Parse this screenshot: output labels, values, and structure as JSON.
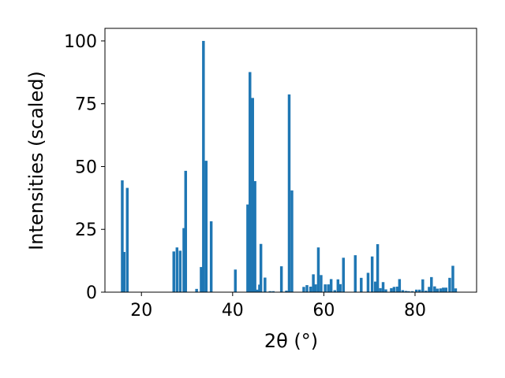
{
  "chart_data": {
    "type": "bar",
    "xlabel": "2θ (°)",
    "ylabel": "Intensities (scaled)",
    "xlim": [
      12,
      93.5
    ],
    "ylim": [
      0,
      105
    ],
    "x_ticks": [
      20,
      40,
      60,
      80
    ],
    "y_ticks": [
      0,
      25,
      50,
      75,
      100
    ],
    "grid": false,
    "bar_color": "#1f77b4",
    "bar_width": 0.6,
    "bars": [
      {
        "x": 15.8,
        "y": 44.5
      },
      {
        "x": 16.2,
        "y": 16
      },
      {
        "x": 16.9,
        "y": 41.5
      },
      {
        "x": 27.1,
        "y": 16.2
      },
      {
        "x": 27.8,
        "y": 17.8
      },
      {
        "x": 28.5,
        "y": 16.5
      },
      {
        "x": 29.3,
        "y": 25.5
      },
      {
        "x": 29.7,
        "y": 48.3
      },
      {
        "x": 32.1,
        "y": 1.3
      },
      {
        "x": 33.1,
        "y": 10
      },
      {
        "x": 33.6,
        "y": 100
      },
      {
        "x": 34.2,
        "y": 52.3
      },
      {
        "x": 35.3,
        "y": 28.2
      },
      {
        "x": 40.6,
        "y": 9
      },
      {
        "x": 43.3,
        "y": 34.9
      },
      {
        "x": 43.8,
        "y": 87.6
      },
      {
        "x": 44.4,
        "y": 77.3
      },
      {
        "x": 44.9,
        "y": 44.2
      },
      {
        "x": 45.4,
        "y": 1
      },
      {
        "x": 45.9,
        "y": 3
      },
      {
        "x": 46.2,
        "y": 19.2
      },
      {
        "x": 47.1,
        "y": 5.8
      },
      {
        "x": 48.2,
        "y": 0.4
      },
      {
        "x": 48.9,
        "y": 0.4
      },
      {
        "x": 50.7,
        "y": 10.3
      },
      {
        "x": 51.8,
        "y": 0.6
      },
      {
        "x": 52.4,
        "y": 78.7
      },
      {
        "x": 53.0,
        "y": 40.5
      },
      {
        "x": 55.6,
        "y": 2.1
      },
      {
        "x": 56.3,
        "y": 2.8
      },
      {
        "x": 57.1,
        "y": 2.2
      },
      {
        "x": 57.7,
        "y": 7.1
      },
      {
        "x": 58.2,
        "y": 3.1
      },
      {
        "x": 58.8,
        "y": 17.8
      },
      {
        "x": 59.4,
        "y": 6.8
      },
      {
        "x": 60.3,
        "y": 3.1
      },
      {
        "x": 61.0,
        "y": 3.1
      },
      {
        "x": 61.6,
        "y": 5.2
      },
      {
        "x": 62.4,
        "y": 0.8
      },
      {
        "x": 63.1,
        "y": 5.1
      },
      {
        "x": 63.6,
        "y": 3.2
      },
      {
        "x": 64.3,
        "y": 13.7
      },
      {
        "x": 66.9,
        "y": 14.7
      },
      {
        "x": 68.2,
        "y": 5.7
      },
      {
        "x": 69.7,
        "y": 7.7
      },
      {
        "x": 70.6,
        "y": 14.2
      },
      {
        "x": 71.3,
        "y": 4.2
      },
      {
        "x": 71.8,
        "y": 19.1
      },
      {
        "x": 72.4,
        "y": 1.6
      },
      {
        "x": 73.0,
        "y": 4
      },
      {
        "x": 73.6,
        "y": 1.1
      },
      {
        "x": 74.8,
        "y": 1.6
      },
      {
        "x": 75.4,
        "y": 2.1
      },
      {
        "x": 76.1,
        "y": 2.2
      },
      {
        "x": 76.6,
        "y": 5.2
      },
      {
        "x": 77.3,
        "y": 0.8
      },
      {
        "x": 78.0,
        "y": 0.5
      },
      {
        "x": 78.6,
        "y": 0.4
      },
      {
        "x": 79.4,
        "y": 0.4
      },
      {
        "x": 80.3,
        "y": 1
      },
      {
        "x": 81.0,
        "y": 1
      },
      {
        "x": 81.7,
        "y": 5.1
      },
      {
        "x": 82.4,
        "y": 0.6
      },
      {
        "x": 83.1,
        "y": 2.1
      },
      {
        "x": 83.6,
        "y": 6
      },
      {
        "x": 84.3,
        "y": 2.3
      },
      {
        "x": 84.9,
        "y": 1.4
      },
      {
        "x": 85.6,
        "y": 1.5
      },
      {
        "x": 86.2,
        "y": 1.8
      },
      {
        "x": 86.8,
        "y": 1.8
      },
      {
        "x": 87.6,
        "y": 5.7
      },
      {
        "x": 88.3,
        "y": 10.5
      },
      {
        "x": 88.9,
        "y": 1.5
      }
    ]
  }
}
